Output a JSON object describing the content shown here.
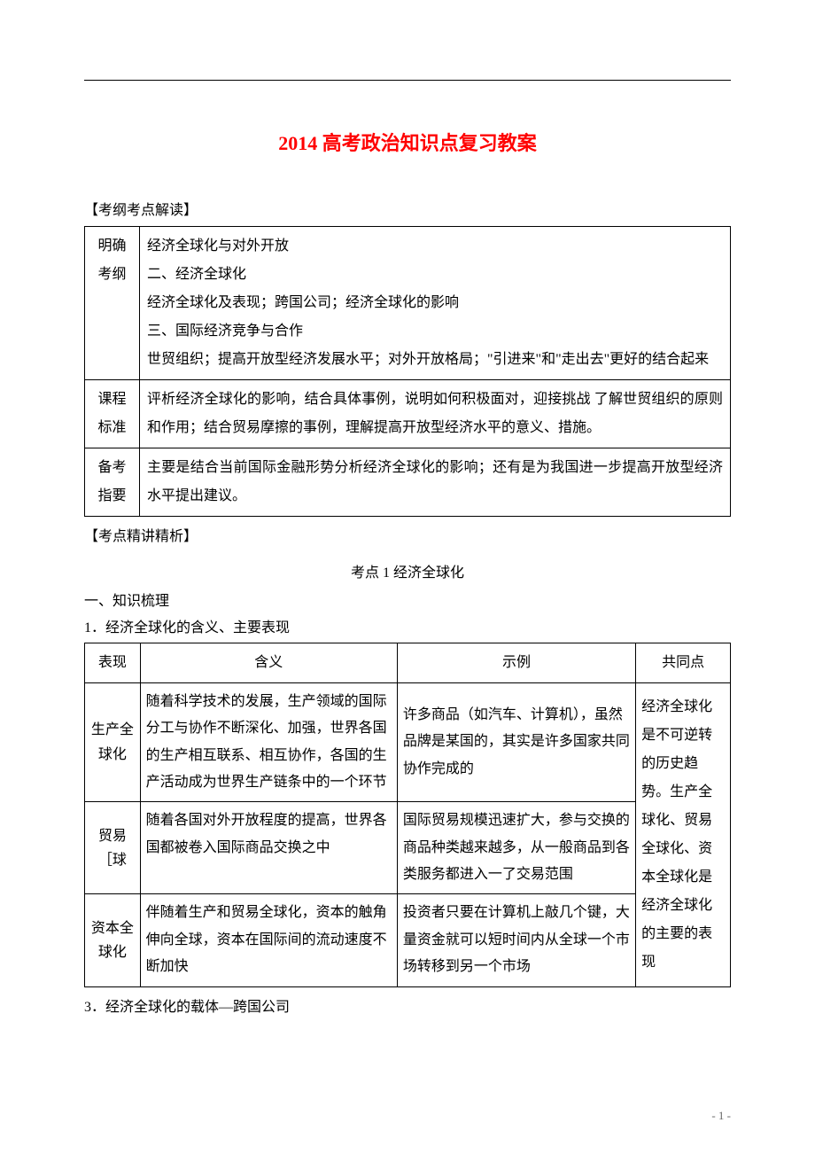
{
  "title_color": "#ff0000",
  "text_color": "#000000",
  "background_color": "#ffffff",
  "border_color": "#000000",
  "title_fontsize": 22,
  "body_fontsize": 16,
  "page_number": "- 1 -",
  "title": "2014 高考政治知识点复习教案",
  "section1_label": "【考纲考点解读】",
  "syllabus": {
    "rows": [
      {
        "c1": "明确考纲",
        "c2": "经济全球化与对外开放\n二、经济全球化\n经济全球化及表现；跨国公司；经济全球化的影响\n三、国际经济竞争与合作\n世贸组织；提高开放型经济发展水平；对外开放格局；\"引进来\"和\"走出去\"更好的结合起来"
      },
      {
        "c1": "课程标准",
        "c2": "评析经济全球化的影响，结合具体事例，说明如何积极面对，迎接挑战  了解世贸组织的原则和作用；结合贸易摩擦的事例，理解提高开放型经济水平的意义、措施。"
      },
      {
        "c1": "备考指要",
        "c2": "主要是结合当前国际金融形势分析经济全球化的影响；还有是为我国进一步提高开放型经济水平提出建议。"
      }
    ]
  },
  "section2_label": "【考点精讲精析】",
  "kpoint_title": "考点 1 经济全球化",
  "subhead1": "一、知识梳理",
  "subhead2": "1．经济全球化的含义、主要表现",
  "globtable": {
    "headers": [
      "表现",
      "含义",
      "示例",
      "共同点"
    ],
    "rows": [
      {
        "c1": "生产全球化",
        "c2": "随着科学技术的发展，生产领域的国际分工与协作不断深化、加强，世界各国的生产相互联系、相互协作，各国的生产活动成为世界生产链条中的一个环节",
        "c3": "许多商品（如汽车、计算机），虽然品牌是某国的，其实是许多国家共同协作完成的"
      },
      {
        "c1": "贸易［球",
        "c2": "随着各国对外开放程度的提高，世界各国都被卷入国际商品交换之中",
        "c3": "国际贸易规模迅速扩大，参与交换的商品种类越来越多，从一般商品到各类服务都进入一了交易范围"
      },
      {
        "c1": "资本全球化",
        "c2": "伴随着生产和贸易全球化，资本的触角伸向全球，资本在国际间的流动速度不断加快",
        "c3": "投资者只要在计算机上敲几个键，大量资金就可以短时间内从全球一个市场转移到另一个市场"
      }
    ],
    "common": "经济全球化是不可逆转的历史趋势。生产全球化、贸易全球化、资本全球化是经济全球化的主要的表现"
  },
  "subhead3": "3．经济全球化的载体—跨国公司"
}
